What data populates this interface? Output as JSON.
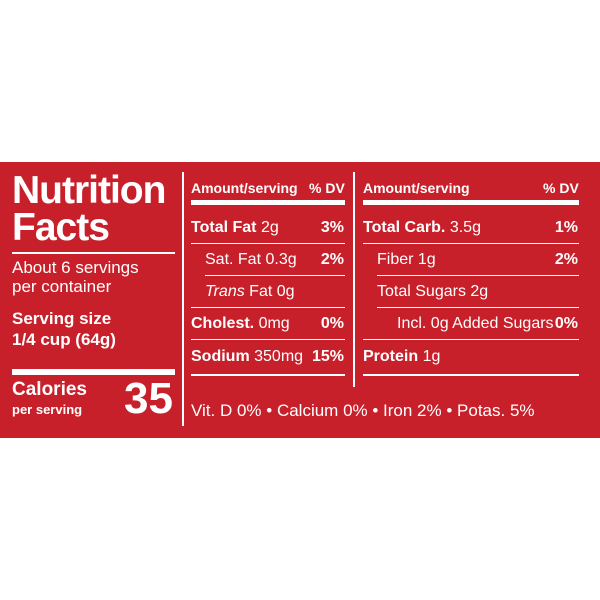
{
  "label": {
    "title_line1": "Nutrition",
    "title_line2": "Facts",
    "servings_line1": "About 6 servings",
    "servings_line2": "per container",
    "serving_size_label": "Serving size",
    "serving_size_value": "1/4 cup (64g)",
    "calories_label": "Calories",
    "calories_sub": "per serving",
    "calories_value": "35"
  },
  "left_table": {
    "header_amount": "Amount/serving",
    "header_dv": "% DV",
    "rows": [
      {
        "name": "Total Fat",
        "amount": "2g",
        "dv": "3%"
      },
      {
        "name": "Sat. Fat",
        "amount": "0.3g",
        "dv": "2%"
      },
      {
        "name_italic": "Trans",
        "name": "Fat",
        "amount": "0g",
        "dv": ""
      },
      {
        "name": "Cholest.",
        "amount": "0mg",
        "dv": "0%"
      },
      {
        "name": "Sodium",
        "amount": "350mg",
        "dv": "15%"
      }
    ]
  },
  "right_table": {
    "header_amount": "Amount/serving",
    "header_dv": "% DV",
    "rows": [
      {
        "name": "Total Carb.",
        "amount": "3.5g",
        "dv": "1%"
      },
      {
        "name": "Fiber",
        "amount": "1g",
        "dv": "2%"
      },
      {
        "name": "Total Sugars",
        "amount": "2g",
        "dv": ""
      },
      {
        "name": "Incl. 0g Added Sugars",
        "amount": "",
        "dv": "0%"
      },
      {
        "name": "Protein",
        "amount": "1g",
        "dv": ""
      }
    ]
  },
  "footer": "Vit. D 0% • Calcium 0% • Iron 2% • Potas. 5%",
  "colors": {
    "background": "#c8202a",
    "text": "#ffffff"
  }
}
